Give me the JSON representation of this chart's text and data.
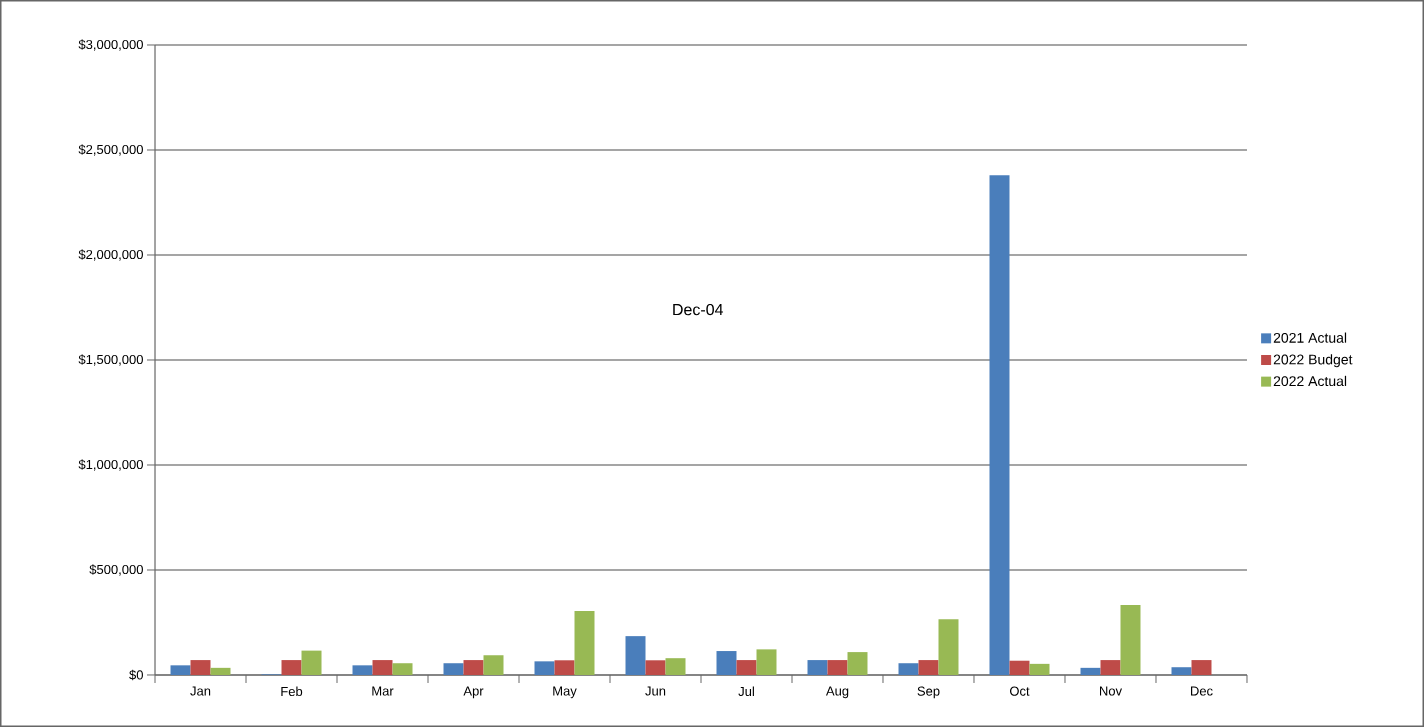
{
  "chart_data": {
    "type": "bar",
    "categories": [
      "Jan",
      "Feb",
      "Mar",
      "Apr",
      "May",
      "Jun",
      "Jul",
      "Aug",
      "Sep",
      "Oct",
      "Nov",
      "Dec"
    ],
    "series": [
      {
        "name": "2021 Actual",
        "color": "#4a7ebb",
        "values": [
          46000,
          3000,
          46000,
          56000,
          65000,
          185000,
          114000,
          71000,
          56000,
          2380000,
          34000,
          37000
        ]
      },
      {
        "name": "2022 Budget",
        "color": "#be4b48",
        "values": [
          71000,
          71000,
          71000,
          71000,
          70000,
          70000,
          71000,
          71000,
          71000,
          68000,
          71000,
          71000
        ]
      },
      {
        "name": "2022 Actual",
        "color": "#98b954",
        "values": [
          34000,
          116000,
          56000,
          94000,
          305000,
          80000,
          122000,
          109000,
          265000,
          53000,
          333000,
          null
        ]
      }
    ],
    "ylim": [
      0,
      3000000
    ],
    "yticks": [
      {
        "value": 0,
        "label": "$0"
      },
      {
        "value": 500000,
        "label": "$500,000"
      },
      {
        "value": 1000000,
        "label": "$1,000,000"
      },
      {
        "value": 1500000,
        "label": "$1,500,000"
      },
      {
        "value": 2000000,
        "label": "$2,000,000"
      },
      {
        "value": 2500000,
        "label": "$2,500,000"
      },
      {
        "value": 3000000,
        "label": "$3,000,000"
      }
    ],
    "grid": "y",
    "legend": "right",
    "annotations": [
      "Dec-04"
    ]
  }
}
